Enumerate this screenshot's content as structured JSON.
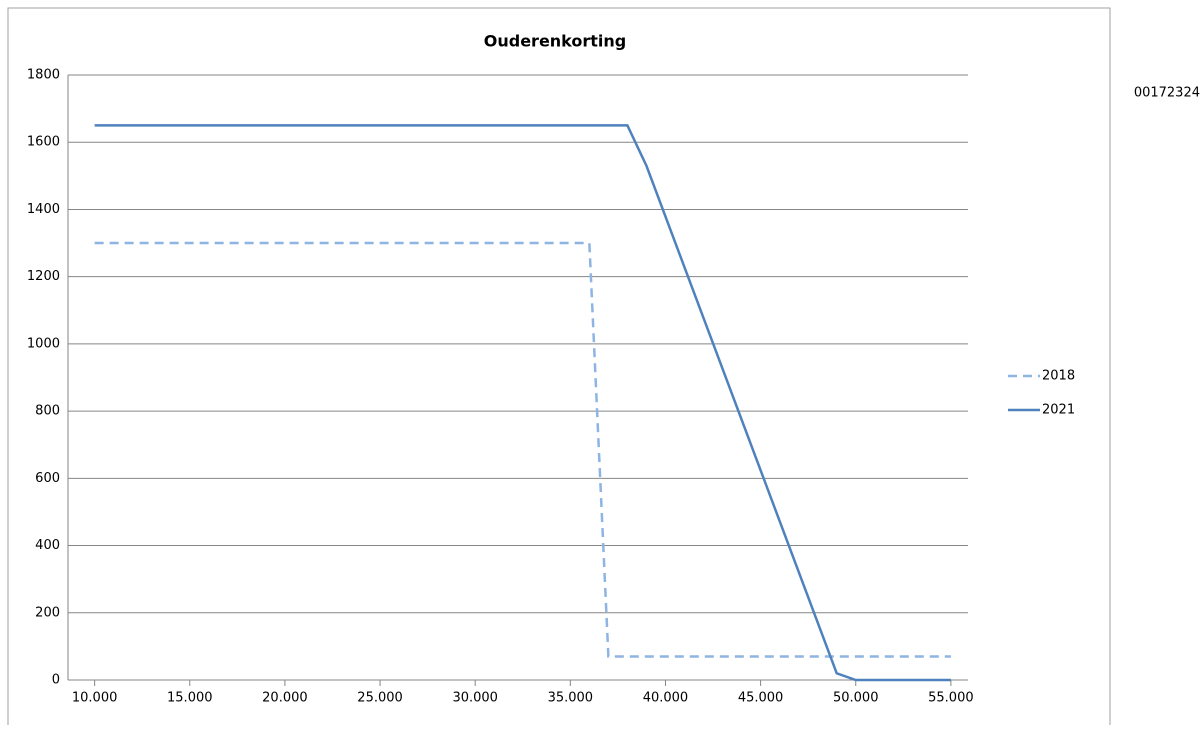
{
  "chart_data": {
    "type": "line",
    "title": "Ouderenkorting",
    "series": [
      {
        "name": "2018",
        "color": "#8db4e2",
        "line_style": "dashed",
        "x": [
          10000,
          36000,
          37000,
          55000
        ],
        "values": [
          1300,
          1300,
          70,
          70
        ]
      },
      {
        "name": "2021",
        "color": "#4f81bd",
        "line_style": "solid",
        "x": [
          10000,
          38000,
          39000,
          49000,
          50000,
          55000
        ],
        "values": [
          1650,
          1650,
          1530,
          20,
          0,
          0
        ]
      }
    ],
    "xlim": [
      8600,
      55900
    ],
    "xticks": [
      {
        "value": 10000,
        "label": "10.000"
      },
      {
        "value": 15000,
        "label": "15.000"
      },
      {
        "value": 20000,
        "label": "20.000"
      },
      {
        "value": 25000,
        "label": "25.000"
      },
      {
        "value": 30000,
        "label": "30.000"
      },
      {
        "value": 35000,
        "label": "35.000"
      },
      {
        "value": 40000,
        "label": "40.000"
      },
      {
        "value": 45000,
        "label": "45.000"
      },
      {
        "value": 50000,
        "label": "50.000"
      },
      {
        "value": 55000,
        "label": "55.000"
      }
    ],
    "ylim": [
      0,
      1800
    ],
    "yticks": [
      0,
      200,
      400,
      600,
      800,
      1000,
      1200,
      1400,
      1600,
      1800
    ],
    "grid": true,
    "legend": "right"
  },
  "side_text": "00172324"
}
